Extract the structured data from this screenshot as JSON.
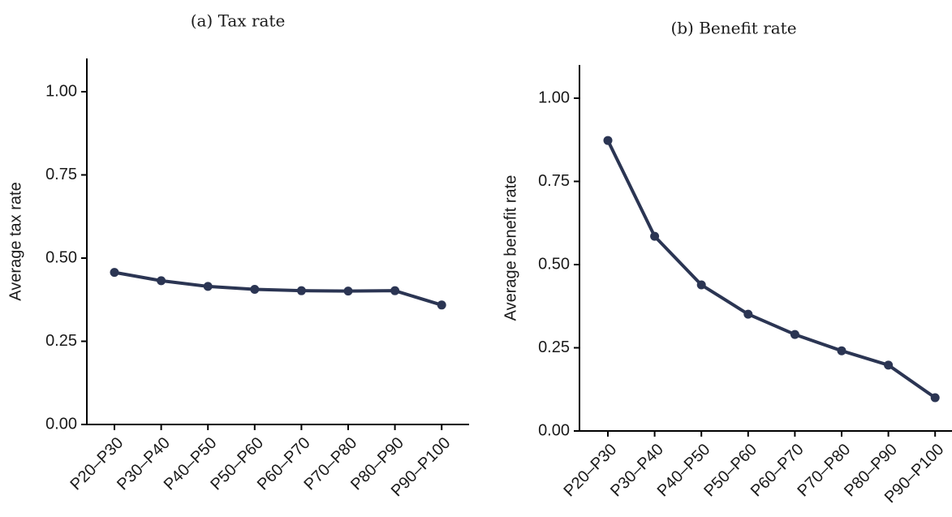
{
  "chart_data": [
    {
      "type": "line",
      "title": "(a) Tax rate",
      "y_label": "Average tax rate",
      "categories": [
        "P20–P30",
        "P30–P40",
        "P40–P50",
        "P50–P60",
        "P60–P70",
        "P70–P80",
        "P80–P90",
        "P90–P100"
      ],
      "values": [
        0.457,
        0.432,
        0.415,
        0.406,
        0.402,
        0.401,
        0.402,
        0.359
      ],
      "color": "#2b3553",
      "ylim": [
        0,
        1.1
      ],
      "yticks": [
        {
          "value": 0,
          "label": "0.00"
        },
        {
          "value": 0.25,
          "label": "0.25"
        },
        {
          "value": 0.5,
          "label": "0.50"
        },
        {
          "value": 0.75,
          "label": "0.75"
        },
        {
          "value": 1,
          "label": "1.00"
        }
      ]
    },
    {
      "type": "line",
      "title": "(b) Benefit rate",
      "y_label": "Average benefit rate",
      "categories": [
        "P20–P30",
        "P30–P40",
        "P40–P50",
        "P50–P60",
        "P60–P70",
        "P70–P80",
        "P80–P90",
        "P90–P100"
      ],
      "values": [
        0.873,
        0.585,
        0.439,
        0.351,
        0.29,
        0.241,
        0.198,
        0.1
      ],
      "color": "#2b3553",
      "ylim": [
        0,
        1.1
      ],
      "yticks": [
        {
          "value": 0,
          "label": "0.00"
        },
        {
          "value": 0.25,
          "label": "0.25"
        },
        {
          "value": 0.5,
          "label": "0.50"
        },
        {
          "value": 0.75,
          "label": "0.75"
        },
        {
          "value": 1,
          "label": "1.00"
        }
      ]
    }
  ]
}
